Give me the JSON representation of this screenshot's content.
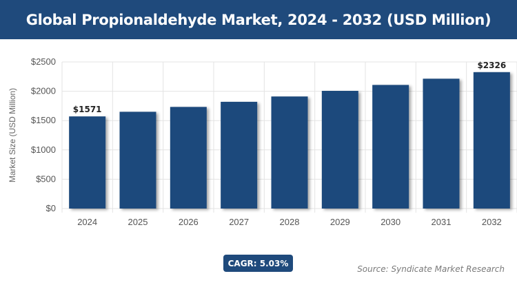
{
  "header": {
    "title": "Global Propionaldehyde Market, 2024 - 2032 (USD Million)"
  },
  "badge": {
    "cagr_label": "CAGR: 5.03%"
  },
  "footer": {
    "source": "Source: Syndicate Market Research"
  },
  "colors": {
    "banner": "#1f4a7c",
    "bar": "#1f4a7c",
    "grid": "#e3e3e3",
    "axis_text": "#555555"
  },
  "chart_data": {
    "type": "bar",
    "title": "Global Propionaldehyde Market, 2024 - 2032 (USD Million)",
    "xlabel": "",
    "ylabel": "Market Size (USD Million)",
    "categories": [
      "2024",
      "2025",
      "2026",
      "2027",
      "2028",
      "2029",
      "2030",
      "2031",
      "2032"
    ],
    "values": [
      1571,
      1650,
      1733,
      1820,
      1911,
      2007,
      2108,
      2214,
      2326
    ],
    "data_labels": [
      {
        "index": 0,
        "text": "$1571"
      },
      {
        "index": 8,
        "text": "$2326"
      }
    ],
    "ylim": [
      0,
      2500
    ],
    "yticks": [
      0,
      500,
      1000,
      1500,
      2000,
      2500
    ],
    "ytick_labels": [
      "$0",
      "$500",
      "$1000",
      "$1500",
      "$2000",
      "$2500"
    ],
    "grid": true,
    "legend": "none"
  }
}
